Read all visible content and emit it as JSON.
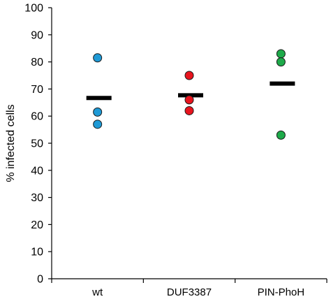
{
  "chart_data": {
    "type": "scatter",
    "subtype": "dot-plot-with-mean-bars",
    "title": "",
    "xlabel": "",
    "ylabel": "% infected cells",
    "ylim": [
      0,
      100
    ],
    "yticks": [
      0,
      10,
      20,
      30,
      40,
      50,
      60,
      70,
      80,
      90,
      100
    ],
    "categories": [
      "wt",
      "DUF3387",
      "PIN-PhoH"
    ],
    "grid": false,
    "legend": "none",
    "series": [
      {
        "category": "wt",
        "color": "#1f9ad6",
        "values": [
          81.5,
          61.5,
          57
        ],
        "mean": 66.7
      },
      {
        "category": "DUF3387",
        "color": "#e8141e",
        "values": [
          75,
          66,
          62
        ],
        "mean": 67.7
      },
      {
        "category": "PIN-PhoH",
        "color": "#1eaa4a",
        "values": [
          83,
          80,
          53
        ],
        "mean": 72.0
      }
    ],
    "mean_marker_color": "#000000"
  }
}
